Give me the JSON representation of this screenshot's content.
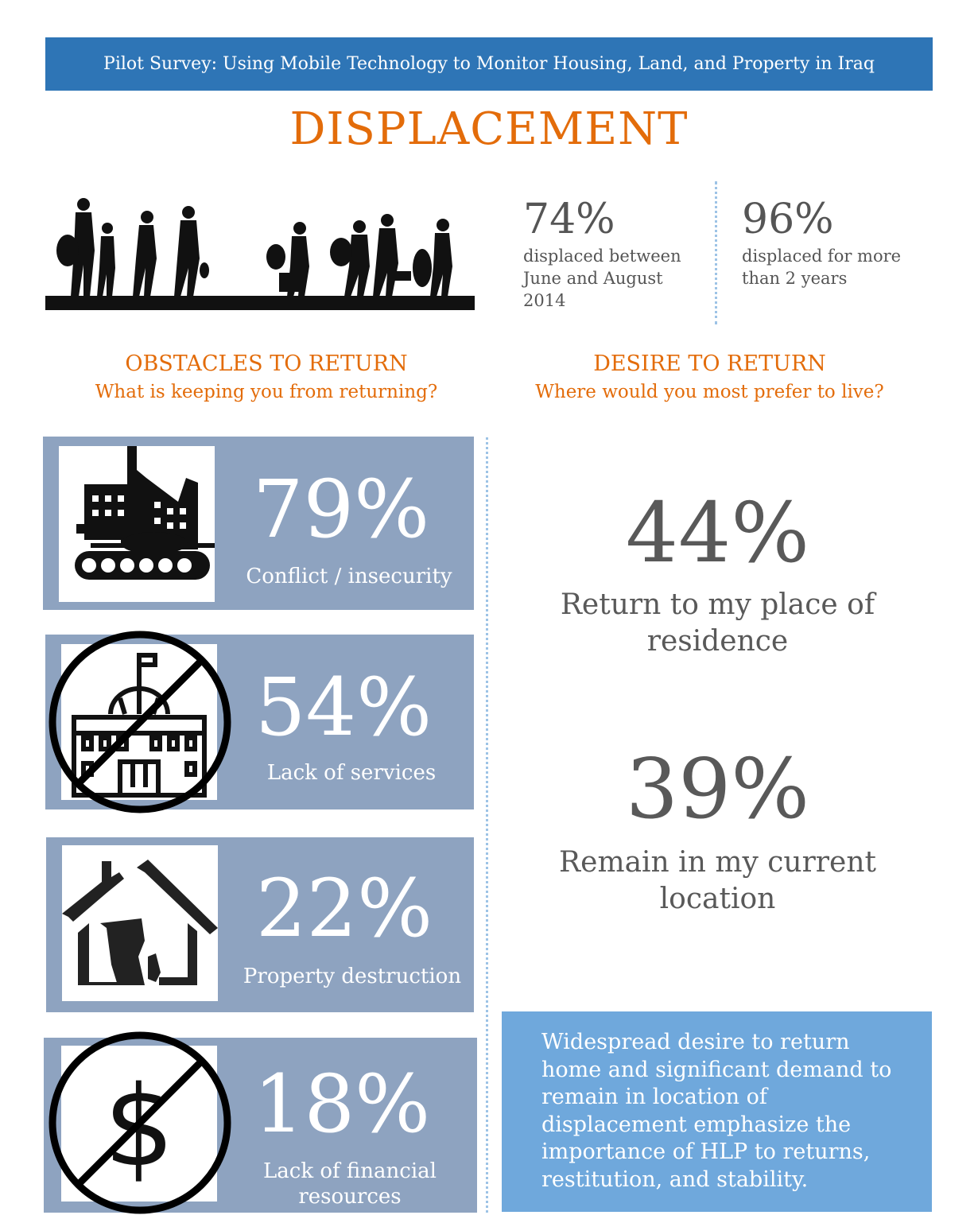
{
  "header": {
    "banner": "Pilot Survey: Using Mobile Technology to Monitor Housing, Land, and Property in Iraq"
  },
  "title": "DISPLACEMENT",
  "top_stats": [
    {
      "value": "74%",
      "label": "displaced between June and August 2014"
    },
    {
      "value": "96%",
      "label": "displaced for more than 2 years"
    }
  ],
  "obstacles": {
    "title": "OBSTACLES TO RETURN",
    "subtitle": "What is keeping you from returning?",
    "items": [
      {
        "value": "79%",
        "label": "Conflict / insecurity",
        "icon": "tank-city-icon"
      },
      {
        "value": "54%",
        "label": "Lack of services",
        "icon": "no-government-building-icon"
      },
      {
        "value": "22%",
        "label": "Property destruction",
        "icon": "damaged-house-icon"
      },
      {
        "value": "18%",
        "label": "Lack of financial resources",
        "icon": "no-dollar-icon"
      }
    ]
  },
  "desire": {
    "title": "DESIRE TO RETURN",
    "subtitle": "Where would you most prefer to live?",
    "items": [
      {
        "value": "44%",
        "label": "Return to my place of residence"
      },
      {
        "value": "39%",
        "label": "Remain in my current location"
      }
    ]
  },
  "callout": "Widespread desire to return home and significant demand to remain in location of displacement emphasize the importance of HLP to returns, restitution, and stability.",
  "colors": {
    "banner": "#2e75b6",
    "accent": "#e36c0a",
    "card": "#8ea3c0",
    "callout": "#6fa8dc"
  }
}
